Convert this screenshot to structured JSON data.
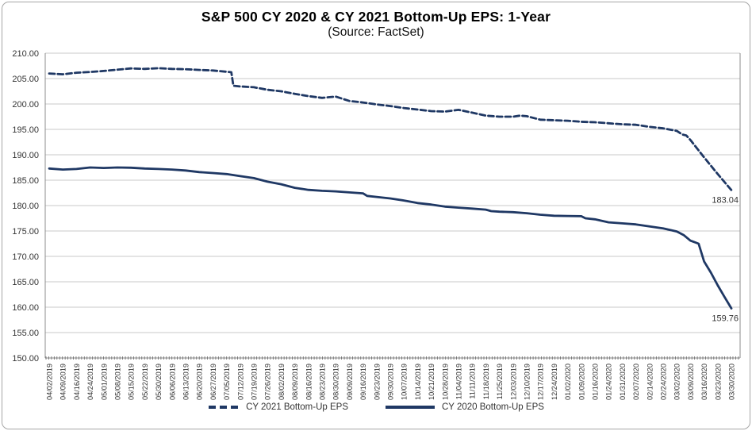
{
  "title": "S&P 500 CY 2020 & CY 2021 Bottom-Up EPS: 1-Year",
  "subtitle": "(Source: FactSet)",
  "colors": {
    "line": "#1f3864",
    "grid": "#c9c9c9",
    "axis": "#8c8c8c",
    "tick_text": "#333333",
    "border": "#a6a6a6"
  },
  "legend": [
    {
      "label": "CY 2021 Bottom-Up EPS",
      "style": "dashed"
    },
    {
      "label": "CY 2020 Bottom-Up EPS",
      "style": "solid"
    }
  ],
  "chart_data": {
    "type": "line",
    "title": "S&P 500 CY 2020 & CY 2021 Bottom-Up EPS: 1-Year",
    "subtitle": "(Source: FactSet)",
    "ylim": [
      150,
      210
    ],
    "ytick_labels": [
      "210.00",
      "205.00",
      "200.00",
      "195.00",
      "190.00",
      "185.00",
      "180.00",
      "175.00",
      "170.00",
      "165.00",
      "160.00",
      "155.00",
      "150.00"
    ],
    "grid": true,
    "legend_position": "bottom",
    "categories": [
      "04/02/2019",
      "04/09/2019",
      "04/16/2019",
      "04/24/2019",
      "05/01/2019",
      "05/08/2019",
      "05/15/2019",
      "05/22/2019",
      "05/30/2019",
      "06/06/2019",
      "06/13/2019",
      "06/20/2019",
      "06/27/2019",
      "07/05/2019",
      "07/12/2019",
      "07/19/2019",
      "07/26/2019",
      "08/02/2019",
      "08/09/2019",
      "08/16/2019",
      "08/23/2019",
      "08/30/2019",
      "09/09/2019",
      "09/16/2019",
      "09/23/2019",
      "09/30/2019",
      "10/07/2019",
      "10/14/2019",
      "10/21/2019",
      "10/28/2019",
      "11/04/2019",
      "11/11/2019",
      "11/18/2019",
      "11/25/2019",
      "12/03/2019",
      "12/10/2019",
      "12/17/2019",
      "12/24/2019",
      "01/02/2020",
      "01/09/2020",
      "01/16/2020",
      "01/24/2020",
      "01/31/2020",
      "02/07/2020",
      "02/14/2020",
      "02/24/2020",
      "03/02/2020",
      "03/09/2020",
      "03/16/2020",
      "03/23/2020",
      "03/30/2020"
    ],
    "series": [
      {
        "name": "CY 2021 Bottom-Up EPS",
        "dash": true,
        "points": [
          [
            0,
            206.0
          ],
          [
            1,
            205.85
          ],
          [
            2,
            206.15
          ],
          [
            3,
            206.3
          ],
          [
            4,
            206.5
          ],
          [
            5,
            206.75
          ],
          [
            6,
            207.0
          ],
          [
            7,
            206.9
          ],
          [
            8,
            207.05
          ],
          [
            9,
            206.9
          ],
          [
            10,
            206.85
          ],
          [
            11,
            206.7
          ],
          [
            12,
            206.6
          ],
          [
            13,
            206.35
          ],
          [
            13.35,
            206.25
          ],
          [
            13.5,
            203.6
          ],
          [
            14,
            203.45
          ],
          [
            15,
            203.3
          ],
          [
            16,
            202.8
          ],
          [
            17,
            202.5
          ],
          [
            18,
            202.0
          ],
          [
            19,
            201.55
          ],
          [
            20,
            201.2
          ],
          [
            21,
            201.45
          ],
          [
            22,
            200.6
          ],
          [
            23,
            200.3
          ],
          [
            24,
            199.9
          ],
          [
            25,
            199.6
          ],
          [
            26,
            199.2
          ],
          [
            27,
            198.9
          ],
          [
            28,
            198.6
          ],
          [
            29,
            198.5
          ],
          [
            30,
            198.85
          ],
          [
            31,
            198.3
          ],
          [
            32,
            197.7
          ],
          [
            33,
            197.5
          ],
          [
            34,
            197.5
          ],
          [
            34.5,
            197.7
          ],
          [
            35,
            197.6
          ],
          [
            36,
            196.9
          ],
          [
            37,
            196.8
          ],
          [
            38,
            196.7
          ],
          [
            39,
            196.5
          ],
          [
            40,
            196.4
          ],
          [
            41,
            196.2
          ],
          [
            42,
            196.0
          ],
          [
            43,
            195.9
          ],
          [
            44,
            195.5
          ],
          [
            45,
            195.2
          ],
          [
            46,
            194.7
          ],
          [
            46.4,
            194.0
          ],
          [
            46.7,
            193.8
          ],
          [
            47,
            192.9
          ],
          [
            48,
            189.5
          ],
          [
            49,
            186.2
          ],
          [
            50,
            183.04
          ]
        ],
        "end_label": "183.04"
      },
      {
        "name": "CY 2020 Bottom-Up EPS",
        "dash": false,
        "points": [
          [
            0,
            187.3
          ],
          [
            1,
            187.1
          ],
          [
            2,
            187.2
          ],
          [
            3,
            187.5
          ],
          [
            4,
            187.4
          ],
          [
            5,
            187.5
          ],
          [
            6,
            187.45
          ],
          [
            7,
            187.3
          ],
          [
            8,
            187.2
          ],
          [
            9,
            187.1
          ],
          [
            10,
            186.9
          ],
          [
            11,
            186.6
          ],
          [
            12,
            186.4
          ],
          [
            13,
            186.2
          ],
          [
            14,
            185.8
          ],
          [
            15,
            185.4
          ],
          [
            16,
            184.7
          ],
          [
            17,
            184.2
          ],
          [
            18,
            183.5
          ],
          [
            19,
            183.1
          ],
          [
            20,
            182.9
          ],
          [
            21,
            182.8
          ],
          [
            22,
            182.6
          ],
          [
            23,
            182.4
          ],
          [
            23.3,
            181.9
          ],
          [
            24,
            181.7
          ],
          [
            25,
            181.4
          ],
          [
            26,
            181.0
          ],
          [
            27,
            180.5
          ],
          [
            28,
            180.2
          ],
          [
            29,
            179.8
          ],
          [
            30,
            179.6
          ],
          [
            31,
            179.4
          ],
          [
            32,
            179.2
          ],
          [
            32.4,
            178.9
          ],
          [
            33,
            178.8
          ],
          [
            34,
            178.7
          ],
          [
            35,
            178.5
          ],
          [
            36,
            178.2
          ],
          [
            37,
            178.0
          ],
          [
            38,
            177.95
          ],
          [
            39,
            177.9
          ],
          [
            39.3,
            177.5
          ],
          [
            40,
            177.3
          ],
          [
            41,
            176.7
          ],
          [
            42,
            176.5
          ],
          [
            43,
            176.3
          ],
          [
            44,
            175.9
          ],
          [
            45,
            175.5
          ],
          [
            46,
            174.9
          ],
          [
            46.5,
            174.2
          ],
          [
            47,
            173.1
          ],
          [
            47.3,
            172.8
          ],
          [
            47.6,
            172.5
          ],
          [
            48,
            169.0
          ],
          [
            48.5,
            166.8
          ],
          [
            49,
            164.3
          ],
          [
            49.5,
            162.0
          ],
          [
            50,
            159.76
          ]
        ],
        "end_label": "159.76"
      }
    ],
    "annotations": [
      {
        "text": "183.04",
        "series": 0
      },
      {
        "text": "159.76",
        "series": 1
      }
    ]
  }
}
